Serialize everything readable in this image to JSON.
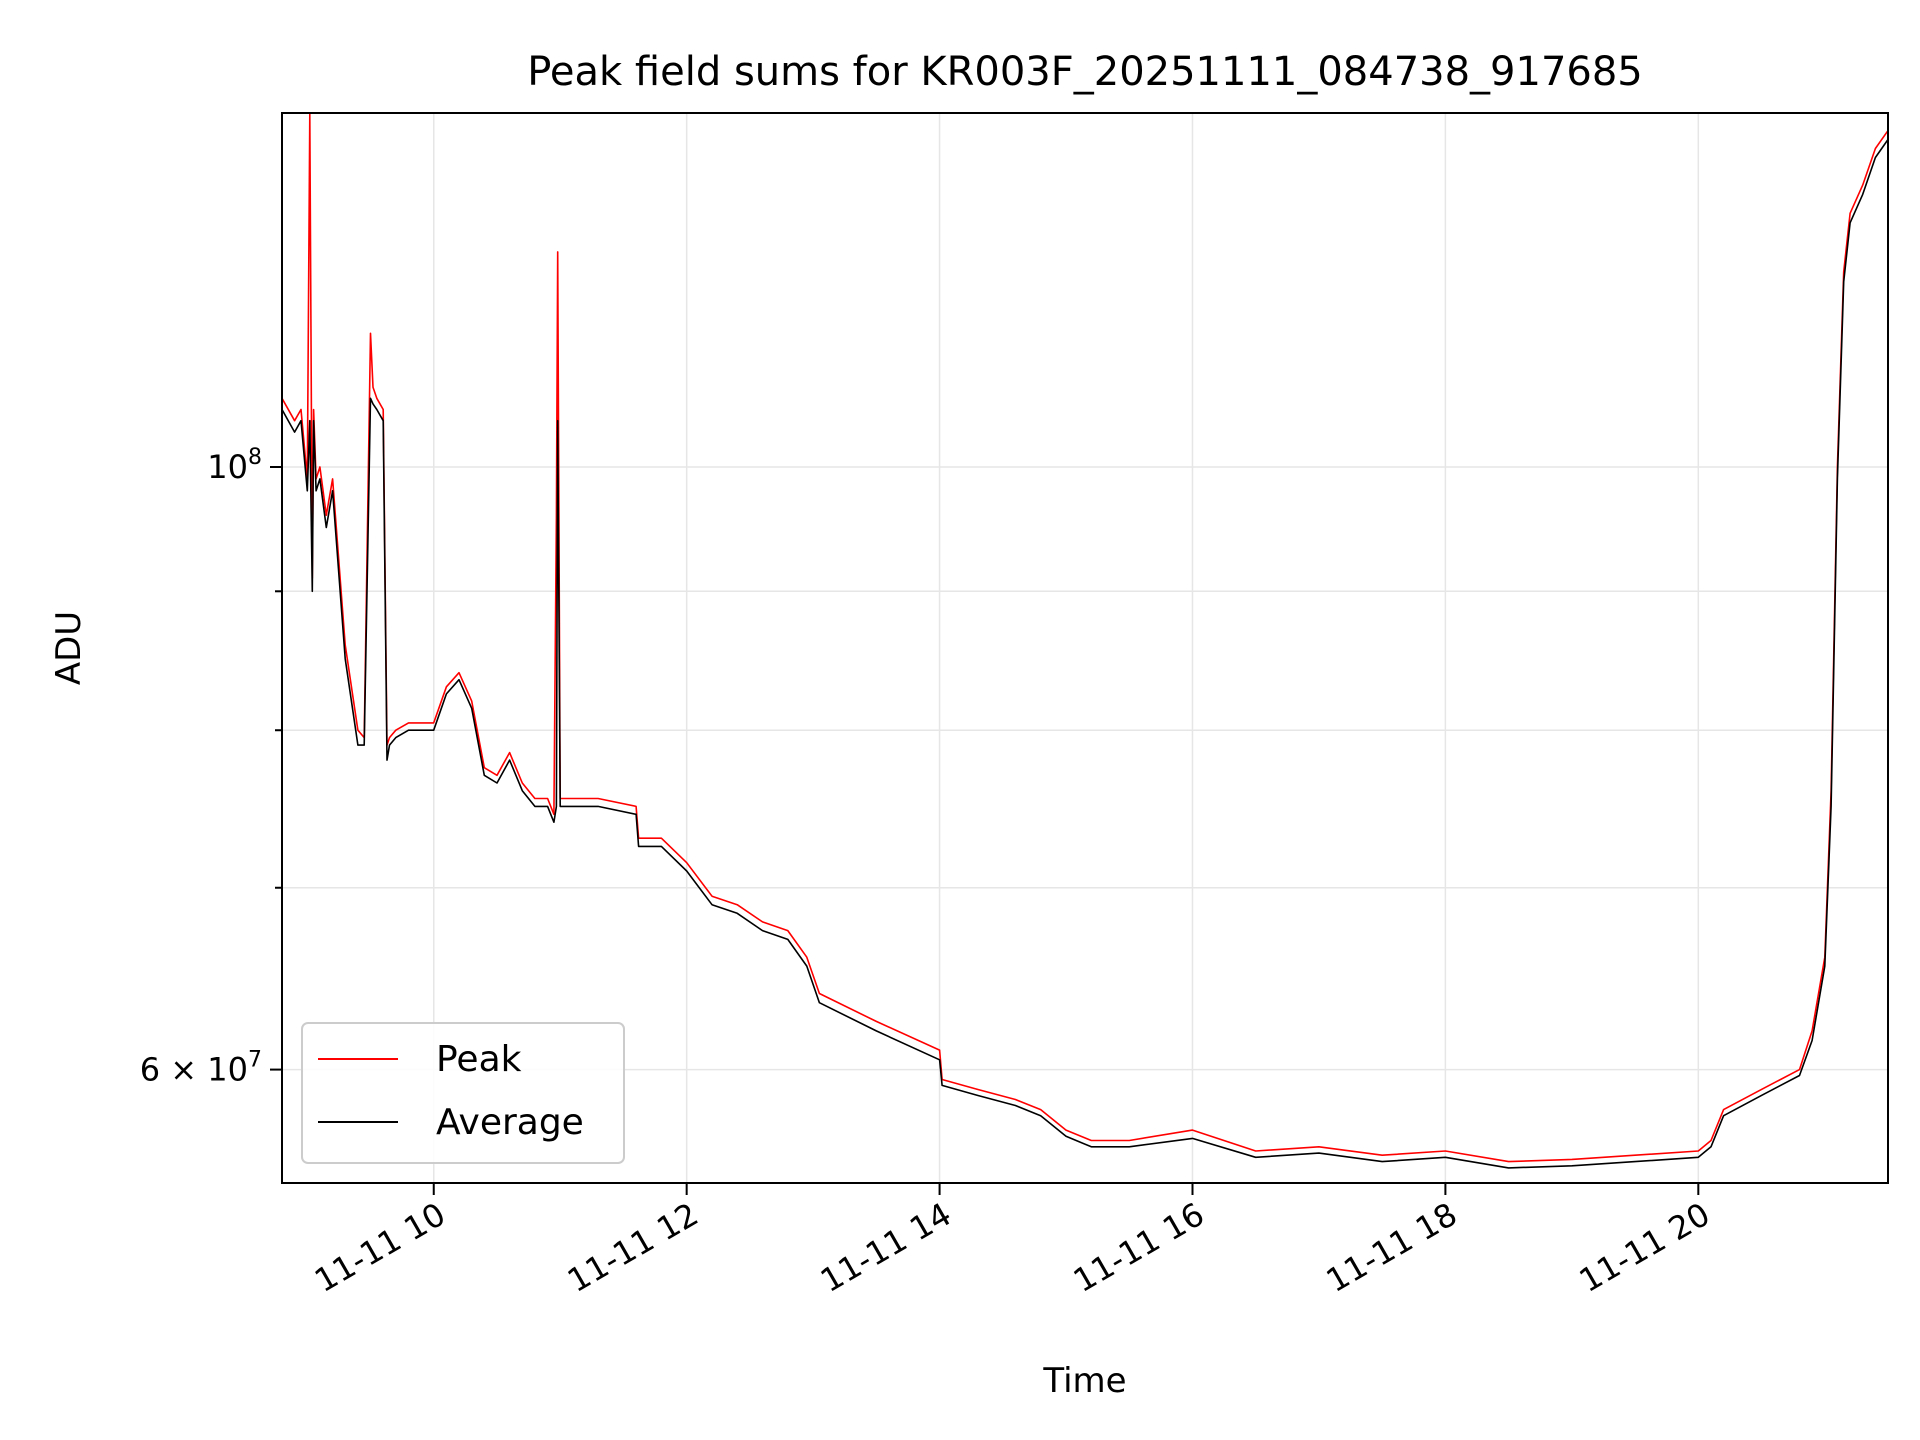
{
  "chart_data": {
    "type": "line",
    "title": "Peak field sums for KR003F_20251111_084738_917685",
    "xlabel": "Time",
    "ylabel": "ADU",
    "yscale": "log",
    "grid": true,
    "legend_position": "lower-left",
    "xlim": [
      8.8,
      21.5
    ],
    "ylim": [
      54500000,
      135000000
    ],
    "x_ticks": [
      {
        "value": 10,
        "label": "11-11 10"
      },
      {
        "value": 12,
        "label": "11-11 12"
      },
      {
        "value": 14,
        "label": "11-11 14"
      },
      {
        "value": 16,
        "label": "11-11 16"
      },
      {
        "value": 18,
        "label": "11-11 18"
      },
      {
        "value": 20,
        "label": "11-11 20"
      }
    ],
    "y_ticks_major": [
      {
        "value": 100000000,
        "base": "10",
        "exp": "8",
        "mantissa": ""
      },
      {
        "value": 60000000,
        "base": "10",
        "exp": "7",
        "mantissa": "6"
      }
    ],
    "y_ticks_minor": [
      70000000,
      80000000,
      90000000
    ],
    "series": [
      {
        "name": "Peak",
        "color": "#ff0000",
        "x": [
          8.8,
          8.9,
          8.95,
          9.0,
          9.02,
          9.04,
          9.05,
          9.07,
          9.1,
          9.15,
          9.2,
          9.3,
          9.4,
          9.45,
          9.5,
          9.52,
          9.55,
          9.6,
          9.63,
          9.65,
          9.7,
          9.8,
          9.9,
          10.0,
          10.1,
          10.2,
          10.3,
          10.4,
          10.5,
          10.6,
          10.7,
          10.8,
          10.9,
          10.95,
          10.97,
          10.98,
          11.0,
          11.1,
          11.3,
          11.6,
          11.62,
          11.8,
          12.0,
          12.2,
          12.4,
          12.6,
          12.8,
          12.95,
          13.05,
          13.5,
          14.0,
          14.02,
          14.3,
          14.6,
          14.8,
          15.0,
          15.2,
          15.5,
          16.0,
          16.5,
          17.0,
          17.5,
          18.0,
          18.5,
          19.0,
          19.5,
          20.0,
          20.1,
          20.2,
          20.5,
          20.8,
          20.9,
          21.0,
          21.05,
          21.1,
          21.15,
          21.2,
          21.3,
          21.4,
          21.5
        ],
        "values": [
          106000000,
          104000000,
          105000000,
          99000000,
          135000000,
          91000000,
          105000000,
          99000000,
          100000000,
          96000000,
          99000000,
          86000000,
          80000000,
          79500000,
          112000000,
          107000000,
          106000000,
          105000000,
          79000000,
          79500000,
          80000000,
          80500000,
          80500000,
          80500000,
          83000000,
          84000000,
          82000000,
          77500000,
          77000000,
          78500000,
          76500000,
          75500000,
          75500000,
          74500000,
          96000000,
          120000000,
          75500000,
          75500000,
          75500000,
          75000000,
          73000000,
          73000000,
          71500000,
          69500000,
          69000000,
          68000000,
          67500000,
          66000000,
          64000000,
          62500000,
          61000000,
          59500000,
          59000000,
          58500000,
          58000000,
          57000000,
          56500000,
          56500000,
          57000000,
          56000000,
          56200000,
          55800000,
          56000000,
          55500000,
          55600000,
          55800000,
          56000000,
          56500000,
          58000000,
          59000000,
          60000000,
          62000000,
          66000000,
          76000000,
          100000000,
          118000000,
          124000000,
          127000000,
          131000000,
          133000000
        ]
      },
      {
        "name": "Average",
        "color": "#000000",
        "x": [
          8.8,
          8.9,
          8.95,
          9.0,
          9.02,
          9.04,
          9.05,
          9.07,
          9.1,
          9.15,
          9.2,
          9.3,
          9.4,
          9.45,
          9.5,
          9.52,
          9.55,
          9.6,
          9.63,
          9.65,
          9.7,
          9.8,
          9.9,
          10.0,
          10.1,
          10.2,
          10.3,
          10.4,
          10.5,
          10.6,
          10.7,
          10.8,
          10.9,
          10.95,
          10.97,
          10.98,
          11.0,
          11.1,
          11.3,
          11.6,
          11.62,
          11.8,
          12.0,
          12.2,
          12.4,
          12.6,
          12.8,
          12.95,
          13.05,
          13.5,
          14.0,
          14.02,
          14.3,
          14.6,
          14.8,
          15.0,
          15.2,
          15.5,
          16.0,
          16.5,
          17.0,
          17.5,
          18.0,
          18.5,
          19.0,
          19.5,
          20.0,
          20.1,
          20.2,
          20.5,
          20.8,
          20.9,
          21.0,
          21.05,
          21.1,
          21.15,
          21.2,
          21.3,
          21.4,
          21.5
        ],
        "values": [
          105000000,
          103000000,
          104000000,
          98000000,
          104000000,
          90000000,
          104000000,
          98000000,
          99000000,
          95000000,
          98000000,
          85000000,
          79000000,
          79000000,
          106000000,
          105500000,
          105000000,
          104000000,
          78000000,
          79000000,
          79500000,
          80000000,
          80000000,
          80000000,
          82500000,
          83500000,
          81500000,
          77000000,
          76500000,
          78000000,
          76000000,
          75000000,
          75000000,
          74000000,
          75000000,
          104000000,
          75000000,
          75000000,
          75000000,
          74500000,
          72500000,
          72500000,
          71000000,
          69000000,
          68500000,
          67500000,
          67000000,
          65500000,
          63500000,
          62000000,
          60500000,
          59200000,
          58700000,
          58200000,
          57700000,
          56700000,
          56200000,
          56200000,
          56600000,
          55700000,
          55900000,
          55500000,
          55700000,
          55200000,
          55300000,
          55500000,
          55700000,
          56200000,
          57700000,
          58700000,
          59700000,
          61500000,
          65500000,
          75000000,
          99000000,
          117000000,
          123000000,
          126000000,
          130000000,
          132000000
        ]
      }
    ]
  }
}
